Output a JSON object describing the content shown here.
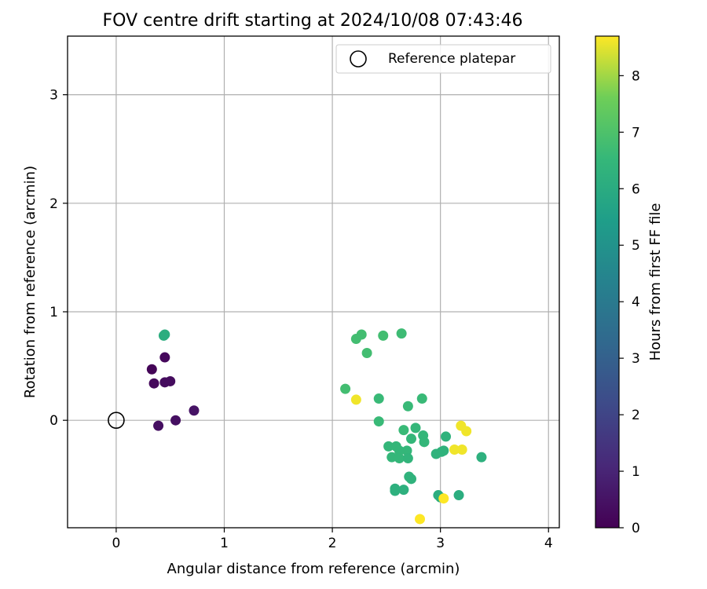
{
  "chart_data": {
    "type": "scatter",
    "title": "FOV centre drift starting at 2024/10/08 07:43:46",
    "xlabel": "Angular distance from reference (arcmin)",
    "ylabel": "Rotation from reference (arcmin)",
    "xlim": [
      -0.45,
      4.1
    ],
    "ylim": [
      -0.99,
      3.54
    ],
    "xticks": [
      0,
      1,
      2,
      3,
      4
    ],
    "yticks": [
      0,
      1,
      2,
      3
    ],
    "grid": true,
    "legend": {
      "position": "top-right",
      "entries": [
        "Reference platepar"
      ]
    },
    "reference_point": {
      "x": 0,
      "y": 0,
      "label": "Reference platepar"
    },
    "colorbar": {
      "label": "Hours from first FF file",
      "colormap": "viridis",
      "min": 0,
      "max": 8.7,
      "ticks": [
        0,
        1,
        2,
        3,
        4,
        5,
        6,
        7,
        8
      ]
    },
    "points": [
      {
        "x": 0.44,
        "y": 0.78,
        "c": 6.1
      },
      {
        "x": 0.45,
        "y": 0.79,
        "c": 6.1
      },
      {
        "x": 0.33,
        "y": 0.47,
        "c": 0.1
      },
      {
        "x": 0.45,
        "y": 0.58,
        "c": 0.2
      },
      {
        "x": 0.35,
        "y": 0.34,
        "c": 0.2
      },
      {
        "x": 0.45,
        "y": 0.35,
        "c": 0.3
      },
      {
        "x": 0.5,
        "y": 0.36,
        "c": 0.3
      },
      {
        "x": 0.39,
        "y": -0.05,
        "c": 0.4
      },
      {
        "x": 0.55,
        "y": 0.0,
        "c": 0.4
      },
      {
        "x": 0.72,
        "y": 0.09,
        "c": 0.5
      },
      {
        "x": 2.22,
        "y": 0.75,
        "c": 6.8
      },
      {
        "x": 2.27,
        "y": 0.79,
        "c": 6.8
      },
      {
        "x": 2.32,
        "y": 0.62,
        "c": 6.8
      },
      {
        "x": 2.47,
        "y": 0.78,
        "c": 6.8
      },
      {
        "x": 2.64,
        "y": 0.8,
        "c": 6.7
      },
      {
        "x": 2.12,
        "y": 0.29,
        "c": 6.8
      },
      {
        "x": 2.22,
        "y": 0.19,
        "c": 8.6
      },
      {
        "x": 2.43,
        "y": 0.2,
        "c": 6.6
      },
      {
        "x": 2.7,
        "y": 0.13,
        "c": 6.6
      },
      {
        "x": 2.83,
        "y": 0.2,
        "c": 6.6
      },
      {
        "x": 2.43,
        "y": -0.01,
        "c": 6.6
      },
      {
        "x": 2.66,
        "y": -0.09,
        "c": 6.6
      },
      {
        "x": 2.77,
        "y": -0.07,
        "c": 6.5
      },
      {
        "x": 2.73,
        "y": -0.17,
        "c": 6.5
      },
      {
        "x": 2.84,
        "y": -0.14,
        "c": 6.5
      },
      {
        "x": 2.85,
        "y": -0.2,
        "c": 6.5
      },
      {
        "x": 2.52,
        "y": -0.24,
        "c": 6.5
      },
      {
        "x": 2.59,
        "y": -0.24,
        "c": 6.5
      },
      {
        "x": 2.62,
        "y": -0.28,
        "c": 6.5
      },
      {
        "x": 2.69,
        "y": -0.28,
        "c": 6.5
      },
      {
        "x": 2.55,
        "y": -0.34,
        "c": 6.5
      },
      {
        "x": 2.62,
        "y": -0.35,
        "c": 6.5
      },
      {
        "x": 2.7,
        "y": -0.35,
        "c": 6.4
      },
      {
        "x": 2.96,
        "y": -0.31,
        "c": 6.3
      },
      {
        "x": 3.01,
        "y": -0.29,
        "c": 6.3
      },
      {
        "x": 3.03,
        "y": -0.28,
        "c": 6.3
      },
      {
        "x": 3.05,
        "y": -0.15,
        "c": 6.3
      },
      {
        "x": 3.38,
        "y": -0.34,
        "c": 6.2
      },
      {
        "x": 3.19,
        "y": -0.05,
        "c": 8.6
      },
      {
        "x": 3.24,
        "y": -0.1,
        "c": 8.6
      },
      {
        "x": 3.13,
        "y": -0.27,
        "c": 8.6
      },
      {
        "x": 3.2,
        "y": -0.27,
        "c": 8.6
      },
      {
        "x": 2.71,
        "y": -0.52,
        "c": 6.3
      },
      {
        "x": 2.73,
        "y": -0.54,
        "c": 6.3
      },
      {
        "x": 2.58,
        "y": -0.63,
        "c": 6.2
      },
      {
        "x": 2.58,
        "y": -0.65,
        "c": 6.2
      },
      {
        "x": 2.66,
        "y": -0.64,
        "c": 6.2
      },
      {
        "x": 2.98,
        "y": -0.69,
        "c": 6.1
      },
      {
        "x": 3.0,
        "y": -0.71,
        "c": 6.1
      },
      {
        "x": 3.17,
        "y": -0.69,
        "c": 6.1
      },
      {
        "x": 3.03,
        "y": -0.72,
        "c": 8.7
      },
      {
        "x": 2.81,
        "y": -0.91,
        "c": 8.7
      }
    ]
  }
}
